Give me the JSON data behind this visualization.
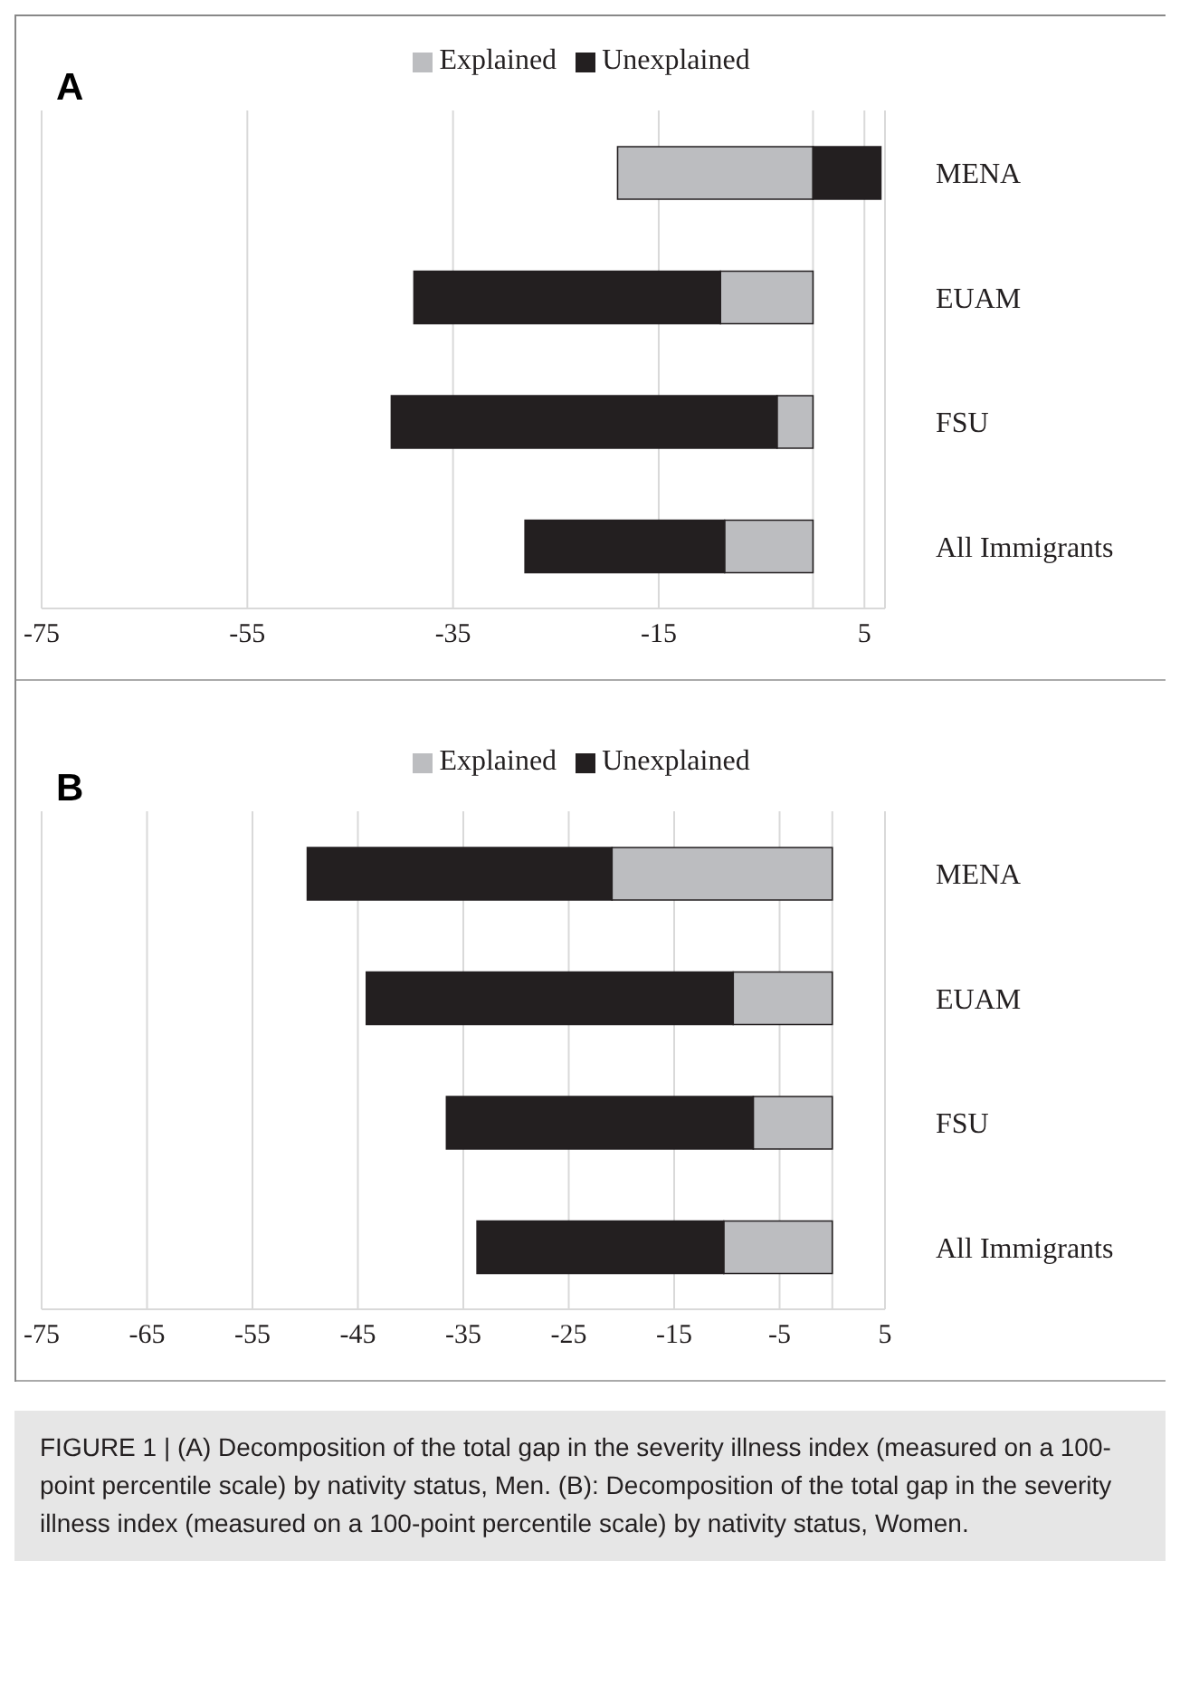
{
  "chart_data": [
    {
      "type": "bar",
      "orientation": "horizontal",
      "stacked": true,
      "title": "A",
      "categories": [
        "MENA",
        "EUAM",
        "FSU",
        "All Immigrants"
      ],
      "series": [
        {
          "name": "Explained",
          "color": "#bcbdc0",
          "values": [
            -19.0,
            -9.0,
            -3.5,
            -8.6
          ]
        },
        {
          "name": "Unexplained",
          "color": "#231f20",
          "values": [
            6.6,
            -29.8,
            -37.5,
            -19.4
          ]
        }
      ],
      "xlim": [
        -75,
        7
      ],
      "xticks": [
        -75,
        -55,
        -35,
        -15,
        {
          "value": 0,
          "label": null
        },
        5
      ],
      "grid": "x",
      "legend": "top"
    },
    {
      "type": "bar",
      "orientation": "horizontal",
      "stacked": true,
      "title": "B",
      "categories": [
        "MENA",
        "EUAM",
        "FSU",
        "All Immigrants"
      ],
      "series": [
        {
          "name": "Explained",
          "color": "#bcbdc0",
          "values": [
            -20.9,
            -9.4,
            -7.5,
            -10.3
          ]
        },
        {
          "name": "Unexplained",
          "color": "#231f20",
          "values": [
            -28.9,
            -34.8,
            -29.1,
            -23.4
          ]
        }
      ],
      "xlim": [
        -75,
        5
      ],
      "xticks": [
        -75,
        -65,
        -55,
        -45,
        -35,
        -25,
        -15,
        -5,
        {
          "value": 0,
          "label": null
        },
        5
      ],
      "grid": "x",
      "legend": "top",
      "annotations": [
        "FIGURE 1 | (A) Decomposition of the total gap in the severity illness index (measured on a 100-point percentile scale) by nativity status, Men. (B): Decomposition of the total gap in the severity illness index (measured on a 100-point percentile scale) by nativity status, Women."
      ]
    }
  ]
}
